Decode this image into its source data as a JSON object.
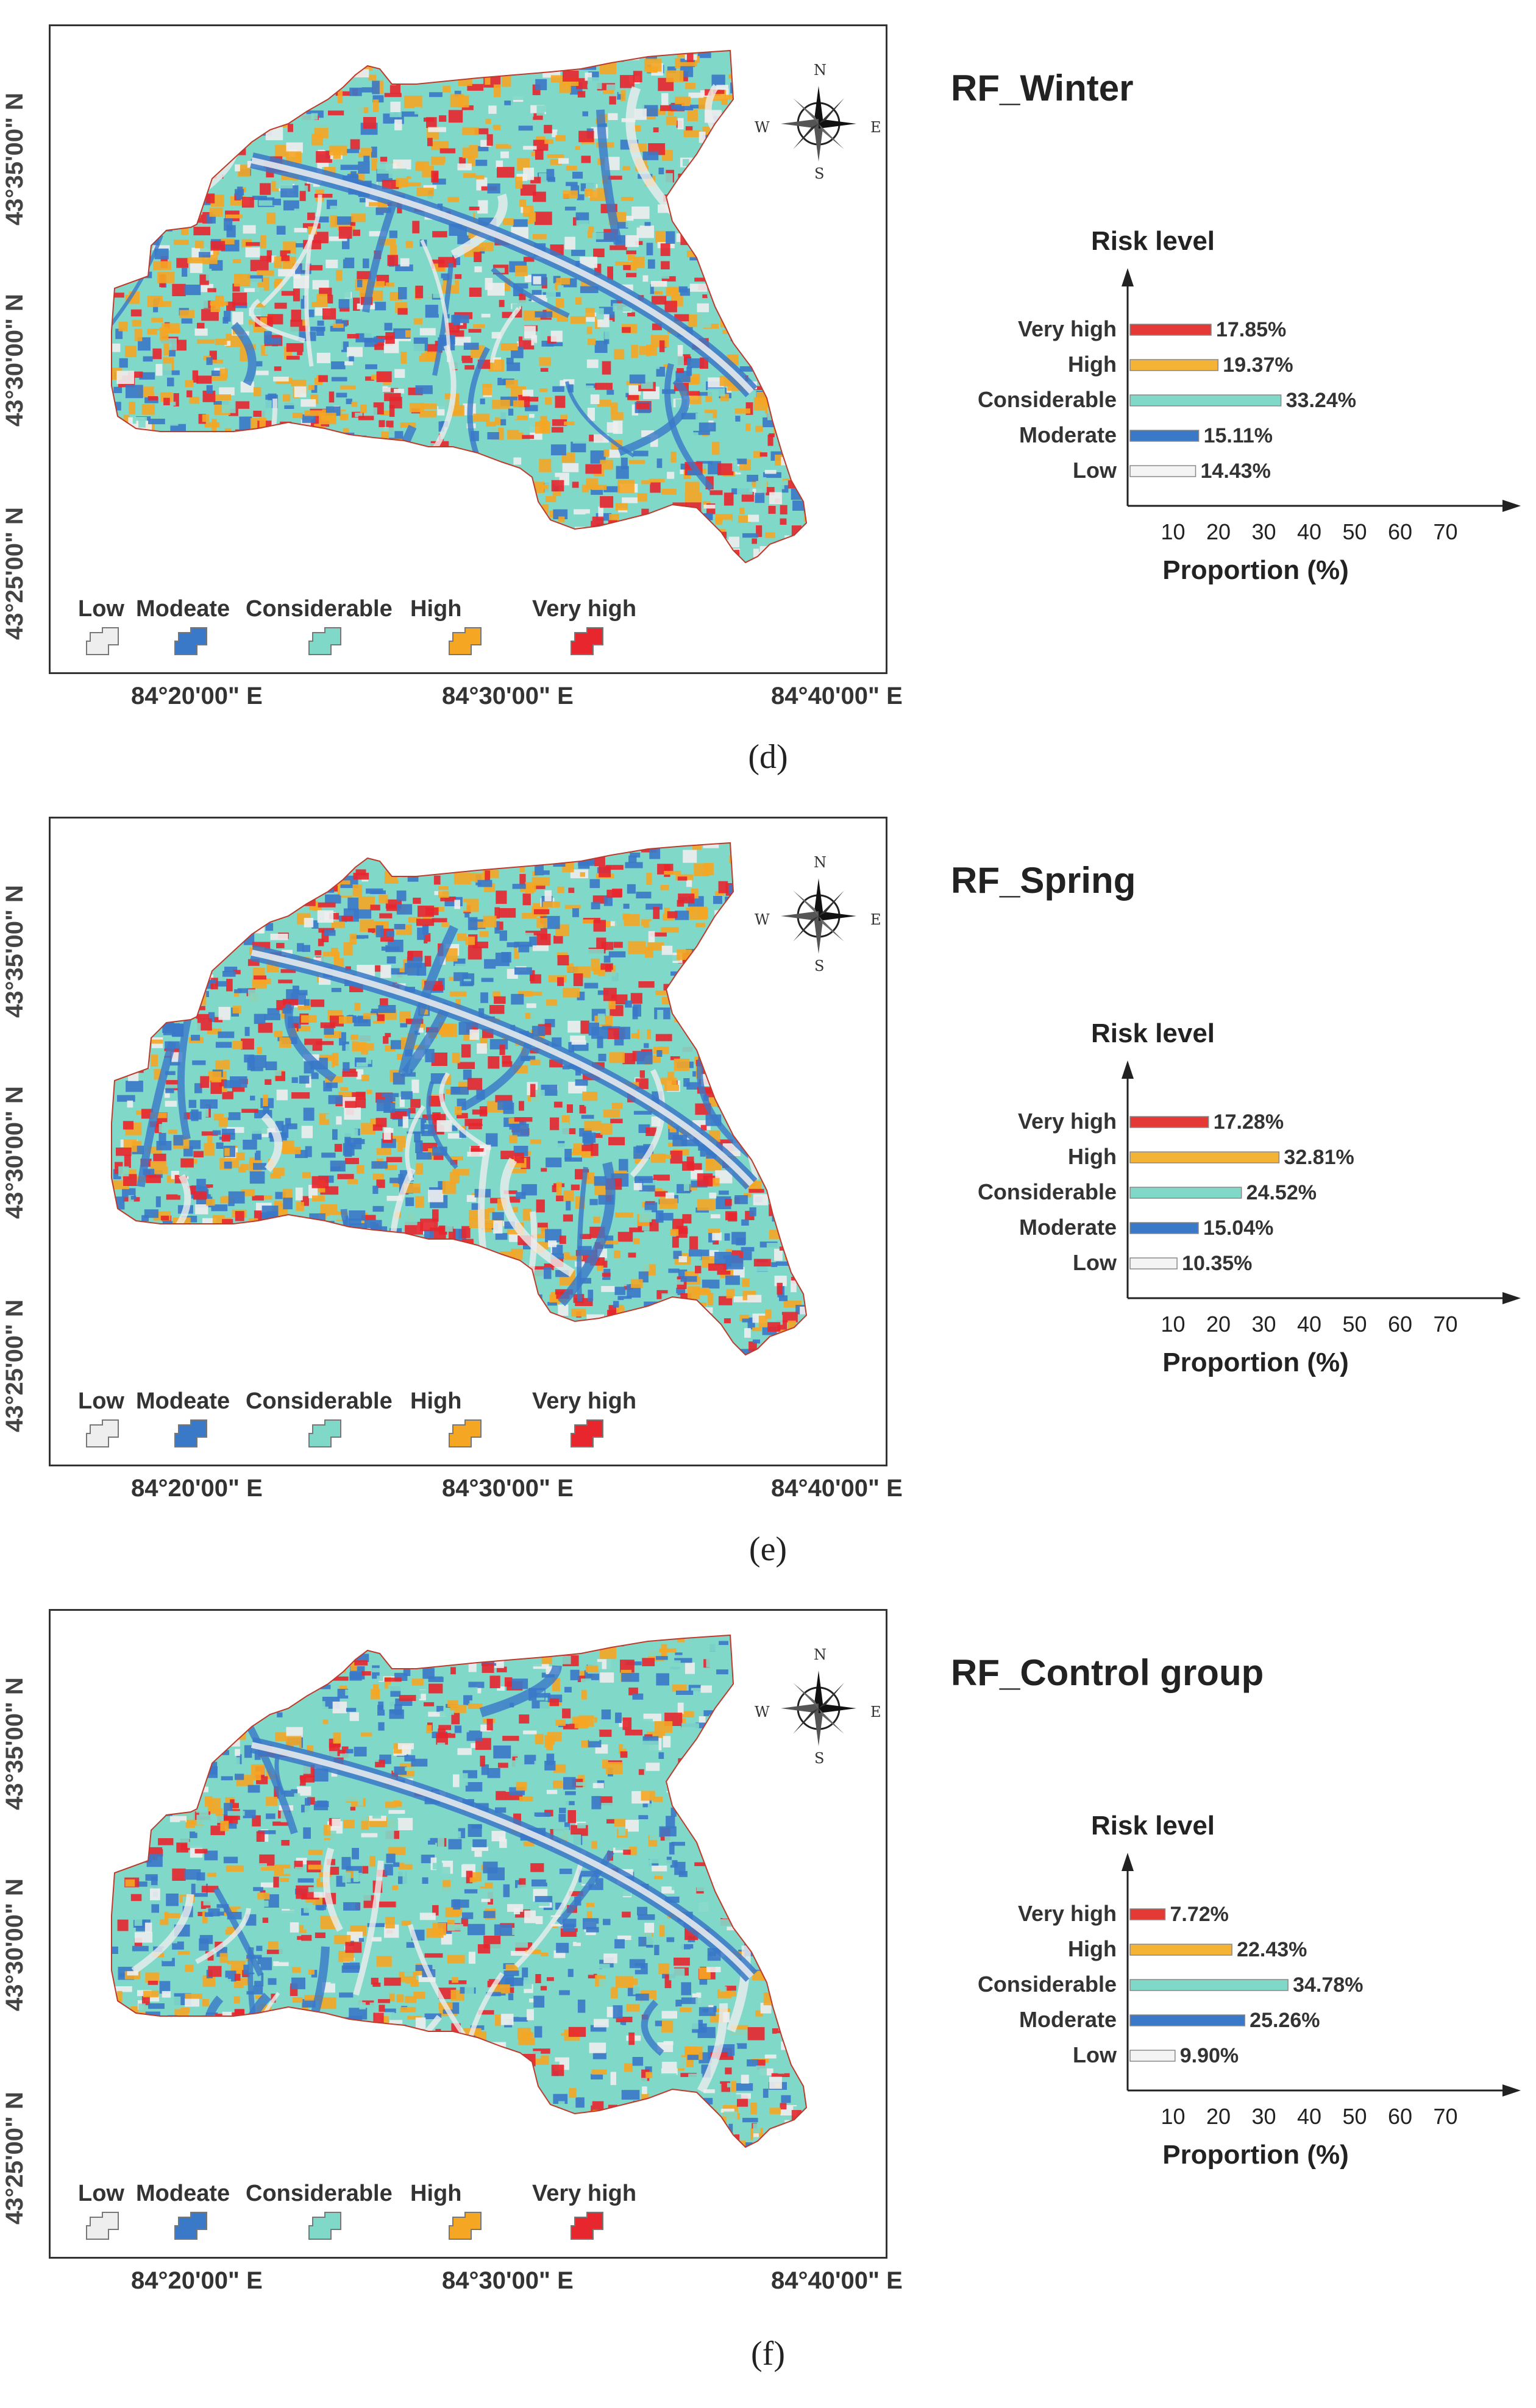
{
  "panels": [
    {
      "caption": "(d)",
      "title": "RF_Winter",
      "mix": [
        0.14,
        0.18,
        0.22,
        0.26,
        0.2
      ],
      "chart_data": {
        "type": "bar",
        "orientation": "horizontal",
        "title": "RF_Winter",
        "ylabel": "Risk level",
        "xlabel": "Proportion (%)",
        "categories": [
          "Very high",
          "High",
          "Considerable",
          "Moderate",
          "Low"
        ],
        "values": [
          17.85,
          19.37,
          33.24,
          15.11,
          14.43
        ],
        "value_labels": [
          "17.85%",
          "19.37%",
          "33.24%",
          "15.11%",
          "14.43%"
        ],
        "colors": [
          "#e53935",
          "#f5b335",
          "#7fd8c8",
          "#3a78c8",
          "#f4f4f4"
        ],
        "xticks": [
          "10",
          "20",
          "30",
          "40",
          "50",
          "60",
          "70"
        ],
        "xlim": [
          0,
          80
        ]
      }
    },
    {
      "caption": "(e)",
      "title": "RF_Spring",
      "mix": [
        0.08,
        0.3,
        0.1,
        0.27,
        0.25
      ],
      "chart_data": {
        "type": "bar",
        "orientation": "horizontal",
        "title": "RF_Spring",
        "ylabel": "Risk level",
        "xlabel": "Proportion (%)",
        "categories": [
          "Very high",
          "High",
          "Considerable",
          "Moderate",
          "Low"
        ],
        "values": [
          17.28,
          32.81,
          24.52,
          15.04,
          10.35
        ],
        "value_labels": [
          "17.28%",
          "32.81%",
          "24.52%",
          "15.04%",
          "10.35%"
        ],
        "colors": [
          "#e53935",
          "#f5b335",
          "#7fd8c8",
          "#3a78c8",
          "#f4f4f4"
        ],
        "xticks": [
          "10",
          "20",
          "30",
          "40",
          "50",
          "60",
          "70"
        ],
        "xlim": [
          0,
          80
        ]
      }
    },
    {
      "caption": "(f)",
      "title": "RF_Control group",
      "mix": [
        0.1,
        0.22,
        0.38,
        0.16,
        0.14
      ],
      "chart_data": {
        "type": "bar",
        "orientation": "horizontal",
        "title": "RF_Control group",
        "ylabel": "Risk level",
        "xlabel": "Proportion (%)",
        "categories": [
          "Very high",
          "High",
          "Considerable",
          "Moderate",
          "Low"
        ],
        "values": [
          7.72,
          22.43,
          34.78,
          25.26,
          9.9
        ],
        "value_labels": [
          "7.72%",
          "22.43%",
          "34.78%",
          "25.26%",
          "9.90%"
        ],
        "colors": [
          "#e53935",
          "#f5b335",
          "#7fd8c8",
          "#3a78c8",
          "#f4f4f4"
        ],
        "xticks": [
          "10",
          "20",
          "30",
          "40",
          "50",
          "60",
          "70"
        ],
        "xlim": [
          0,
          80
        ]
      }
    }
  ],
  "map": {
    "lat_labels": [
      "43°35'00\" N",
      "43°30'00\" N",
      "43°25'00\" N"
    ],
    "lon_labels": [
      "84°20'00\" E",
      "84°30'00\" E",
      "84°40'00\" E"
    ],
    "legend": [
      {
        "label": "Low",
        "color": "#eeeeee"
      },
      {
        "label": "Modeate",
        "color": "#3a78c8"
      },
      {
        "label": "Considerable",
        "color": "#7fd8c8"
      },
      {
        "label": "High",
        "color": "#f5a623"
      },
      {
        "label": "Very high",
        "color": "#e8262d"
      }
    ],
    "compass": {
      "n": "N",
      "s": "S",
      "e": "E",
      "w": "W",
      "icon": "compass-rose-icon"
    }
  }
}
